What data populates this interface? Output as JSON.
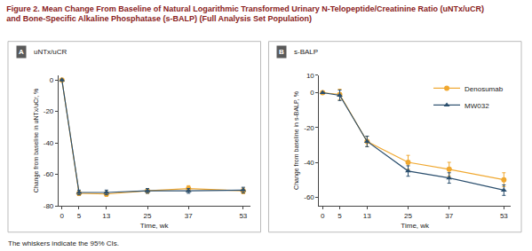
{
  "title": [
    "Figure 2. Mean Change From Baseline of Natural Logarithmic Transformed Urinary N-Telopeptide/Creatinine Ratio (uNTx/uCR)",
    "and Bone-Specific Alkaline Phosphatase (s-BALP) (Full Analysis Set Population)"
  ],
  "note": "The whiskers indicate the 95% CIs.",
  "chart_data": [
    {
      "type": "line",
      "panel": "A",
      "title": "uNTx/uCR",
      "x": [
        0,
        5,
        13,
        25,
        37,
        53
      ],
      "xlim": [
        -1,
        55
      ],
      "xticks": [
        0,
        5,
        13,
        25,
        37,
        53
      ],
      "xlabel": "Time, wk",
      "ylim": [
        -80,
        3
      ],
      "yticks": [
        -80,
        -60,
        -40,
        -20,
        0
      ],
      "ylabel": "Change from baseline in uNTx/uCr, %",
      "grid": false,
      "series": [
        {
          "name": "Denosumab",
          "color": "#f0a830",
          "marker": "circle",
          "values": [
            0,
            -72,
            -72.5,
            -70.5,
            -69,
            -70.5
          ],
          "error": [
            0,
            1.5,
            1.5,
            1.5,
            1.8,
            1.8
          ]
        },
        {
          "name": "MW032",
          "color": "#2b4f6e",
          "marker": "triangle-up",
          "values": [
            0,
            -71.5,
            -71.5,
            -70.5,
            -70.5,
            -70
          ],
          "error": [
            0,
            1.5,
            1.5,
            1.5,
            1.5,
            1.8
          ]
        }
      ]
    },
    {
      "type": "line",
      "panel": "B",
      "title": "s-BALP",
      "x": [
        0,
        5,
        13,
        25,
        37,
        53
      ],
      "xlim": [
        -1,
        55
      ],
      "xticks": [
        0,
        5,
        13,
        25,
        37,
        53
      ],
      "xlabel": "Time, wk",
      "ylim": [
        -65,
        10
      ],
      "yticks": [
        -60,
        -40,
        -20,
        0,
        10
      ],
      "ylabel": "Change from baseline in s-BALP, %",
      "grid": false,
      "legend": "upper right",
      "series": [
        {
          "name": "Denosumab",
          "color": "#f0a830",
          "marker": "circle",
          "values": [
            0,
            -1,
            -28,
            -40,
            -44,
            -50
          ],
          "error": [
            0,
            3,
            3,
            4,
            4,
            4
          ]
        },
        {
          "name": "MW032",
          "color": "#2b4f6e",
          "marker": "triangle-up",
          "values": [
            0,
            -1.5,
            -28,
            -45,
            -49,
            -56
          ],
          "error": [
            0,
            3,
            3,
            3,
            3,
            3
          ]
        }
      ]
    }
  ]
}
